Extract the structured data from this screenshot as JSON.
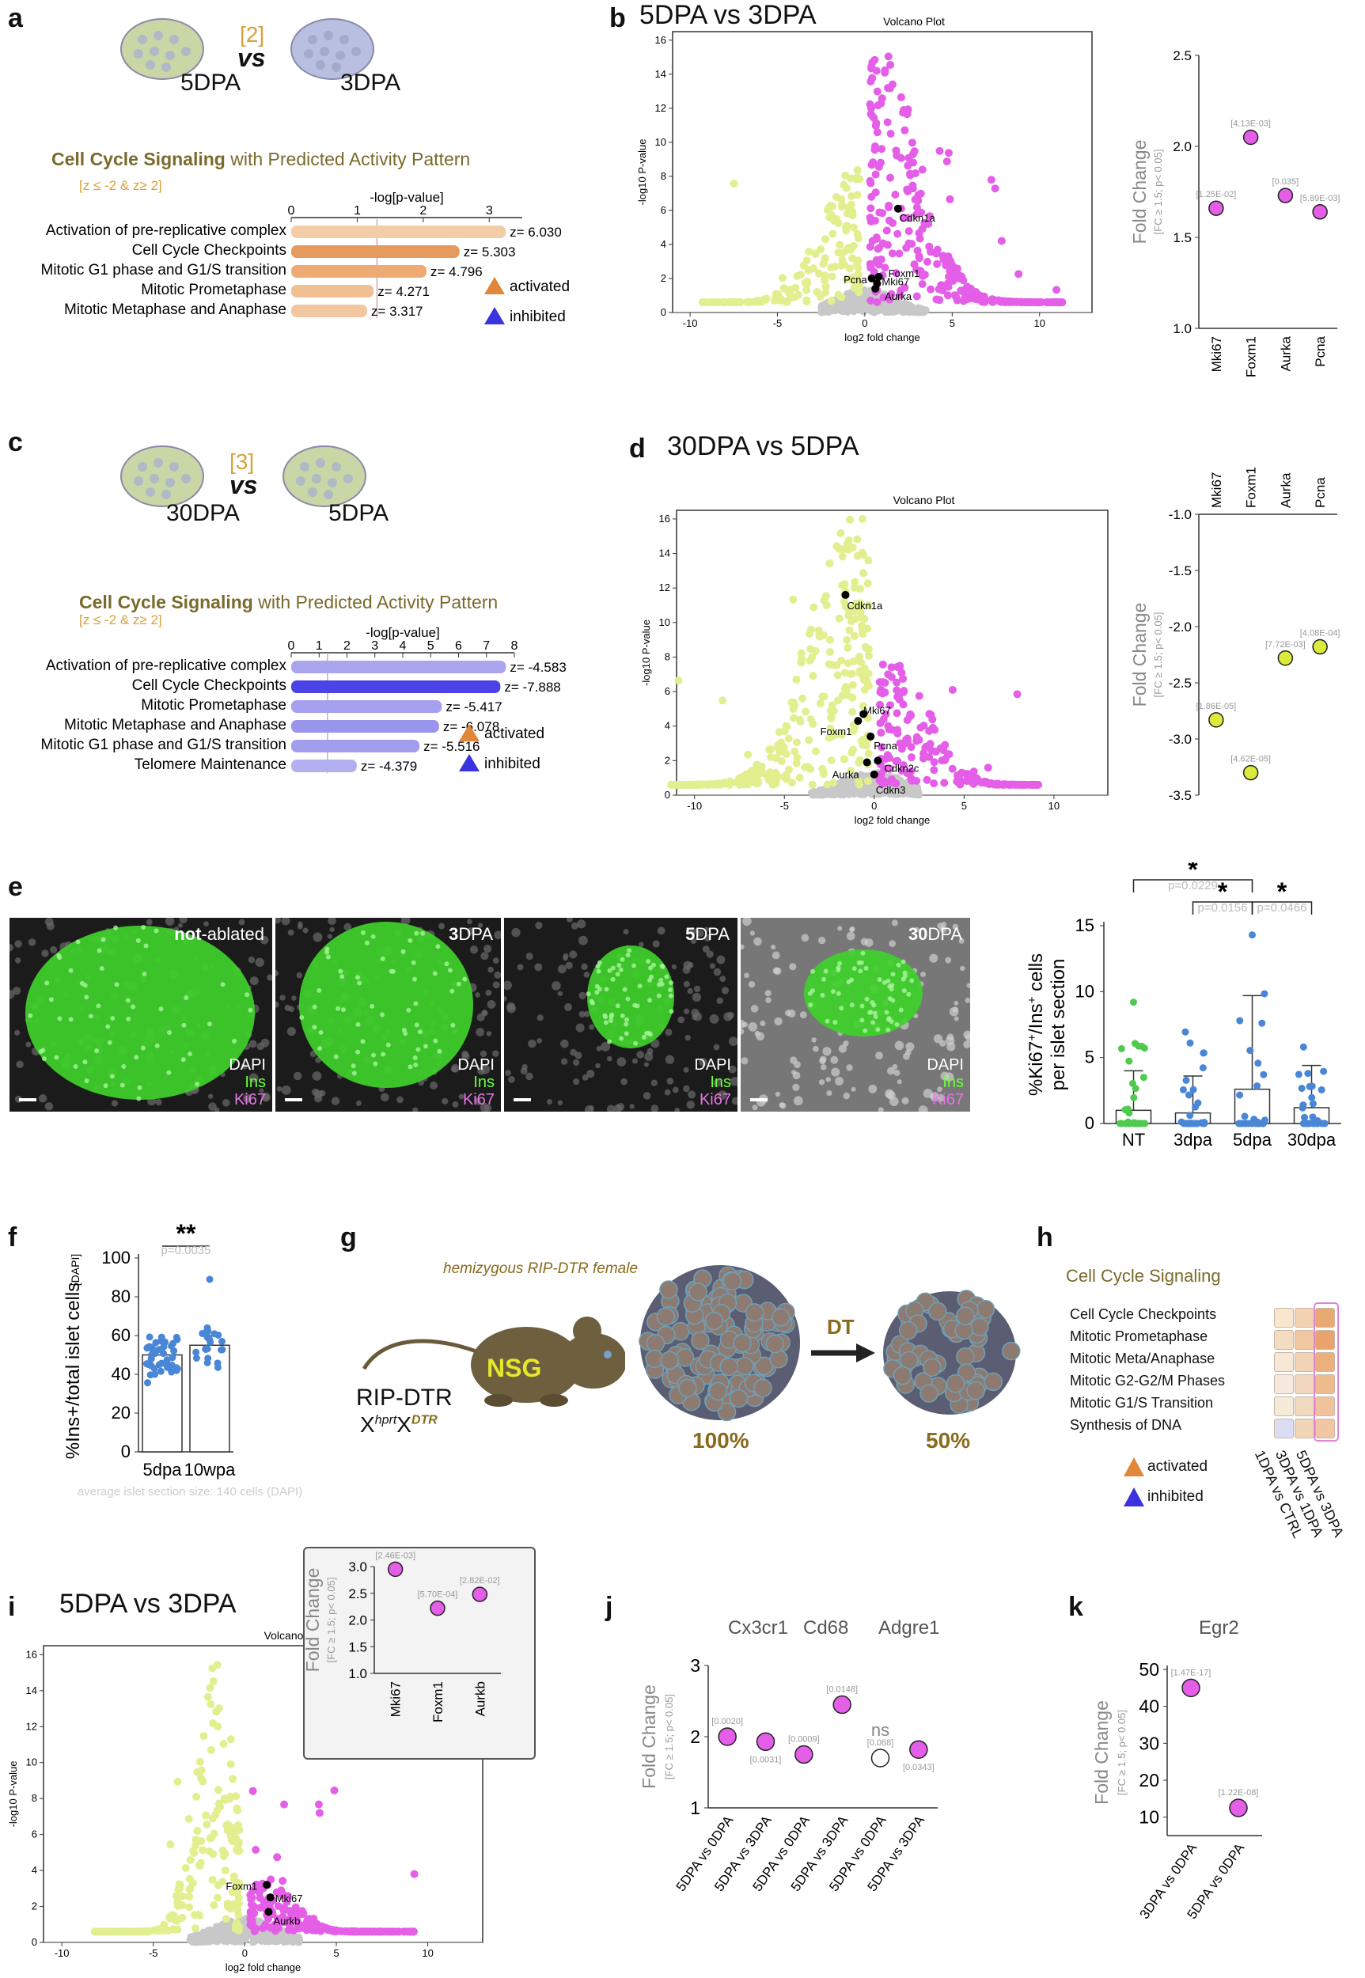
{
  "a": {
    "label": "a",
    "ref": "[2]",
    "vs": "vs",
    "left": "5DPA",
    "right": "3DPA",
    "title_main": "Cell Cycle Signaling",
    "title_rest": " with Predicted Activity Pattern",
    "threshold": "[z ≤ -2 & z≥ 2]",
    "axis_label": "-log[p-value]",
    "ticks": [
      "0",
      "1",
      "2",
      "3"
    ],
    "rows": [
      {
        "label": "Activation of pre-replicative complex",
        "z": "z= 6.030",
        "value": 3.25
      },
      {
        "label": "Cell Cycle Checkpoints",
        "z": "z= 5.303",
        "value": 2.55
      },
      {
        "label": "Mitotic G1 phase and G1/S transition",
        "z": "z= 4.796",
        "value": 2.05
      },
      {
        "label": "Mitotic Prometaphase",
        "z": "z= 4.271",
        "value": 1.25
      },
      {
        "label": "Mitotic Metaphase and Anaphase",
        "z": "z= 3.317",
        "value": 1.15
      }
    ],
    "legend_activated": "activated",
    "legend_inhibited": "inhibited"
  },
  "b": {
    "label": "b",
    "title": "5DPA vs 3DPA",
    "volcano_title": "Volcano Plot",
    "xlabel": "log2 fold change",
    "ylabel": "-log10 P-value",
    "xticks": [
      "-10",
      "-5",
      "0",
      "5",
      "10"
    ],
    "yticks": [
      "0",
      "2",
      "4",
      "6",
      "8",
      "10",
      "12",
      "14",
      "16"
    ],
    "genes": [
      "Cdkn1a",
      "Pcna",
      "Foxm1",
      "Mki67",
      "Aurka"
    ],
    "fc_ylabel": "Fold Change",
    "fc_sub": "[FC ≥ 1.5; p< 0.05]",
    "fc_yticks": [
      "1.0",
      "1.5",
      "2.0",
      "2.5"
    ],
    "fc_cats": [
      "Mki67",
      "Foxm1",
      "Aurka",
      "Pcna"
    ],
    "fc_values": [
      1.66,
      2.05,
      1.73,
      1.64
    ],
    "fc_pvals": [
      "[1.25E-02]",
      "[4.13E-03]",
      "[0.035]",
      "[5.89E-03]"
    ]
  },
  "c": {
    "label": "c",
    "ref": "[3]",
    "vs": "vs",
    "left": "30DPA",
    "right": "5DPA",
    "title_main": "Cell Cycle Signaling",
    "title_rest": " with Predicted Activity Pattern",
    "threshold": "[z ≤ -2 & z≥ 2]",
    "axis_label": "-log[p-value]",
    "ticks": [
      "0",
      "1",
      "2",
      "3",
      "4",
      "5",
      "6",
      "7",
      "8"
    ],
    "rows": [
      {
        "label": "Activation of pre-replicative complex",
        "z": "z= -4.583",
        "value": 7.7
      },
      {
        "label": "Cell Cycle Checkpoints",
        "z": "z= -7.888",
        "value": 7.5
      },
      {
        "label": "Mitotic Prometaphase",
        "z": "z= -5.417",
        "value": 5.4
      },
      {
        "label": "Mitotic Metaphase and Anaphase",
        "z": "z= -6.078",
        "value": 5.3
      },
      {
        "label": "Mitotic G1 phase and G1/S transition",
        "z": "z= -5.516",
        "value": 4.6
      },
      {
        "label": "Telomere Maintenance",
        "z": "z= -4.379",
        "value": 2.35
      }
    ],
    "legend_activated": "activated",
    "legend_inhibited": "inhibited"
  },
  "d": {
    "label": "d",
    "title": "30DPA vs 5DPA",
    "volcano_title": "Volcano Plot",
    "xlabel": "log2 fold change",
    "ylabel": "-log10 P-value",
    "xticks": [
      "-10",
      "-5",
      "0",
      "5",
      "10"
    ],
    "yticks": [
      "0",
      "2",
      "4",
      "6",
      "8",
      "10",
      "12",
      "14",
      "16"
    ],
    "genes": [
      "Cdkn1a",
      "Foxm1",
      "Mki67",
      "Pcna",
      "Aurka",
      "Cdkn2c",
      "Cdkn3"
    ],
    "fc_ylabel": "Fold Change",
    "fc_sub": "[FC ≥ 1.5; p< 0.05]",
    "fc_yticks": [
      "-1.0",
      "-1.5",
      "-2.0",
      "-2.5",
      "-3.0",
      "-3.5"
    ],
    "fc_cats": [
      "Mki67",
      "Foxm1",
      "Aurka",
      "Pcna"
    ],
    "fc_values": [
      -2.83,
      -3.3,
      -2.28,
      -2.18
    ],
    "fc_pvals": [
      "[1.86E-05]",
      "[4.62E-05]",
      "[7.72E-03]",
      "[4.08E-04]"
    ]
  },
  "e": {
    "label": "e",
    "panels": [
      {
        "cond_a": "not",
        "cond_b": "-ablated"
      },
      {
        "cond_a": "3",
        "cond_b": "DPA"
      },
      {
        "cond_a": "5",
        "cond_b": "DPA"
      },
      {
        "cond_a": "30",
        "cond_b": "DPA"
      }
    ],
    "dapi": "DAPI",
    "ins": "Ins",
    "ki67": "Ki67",
    "chart_ylabel_a": "%Ki67",
    "chart_ylabel_b": "/Ins",
    "chart_ylabel_c": " cells",
    "chart_ylabel_d": "per islet section",
    "sup": "+",
    "categories": [
      "NT",
      "3dpa",
      "5dpa",
      "30dpa"
    ],
    "means": [
      1.0,
      0.8,
      2.6,
      1.2
    ],
    "sd": [
      3.0,
      2.8,
      7.1,
      3.2
    ],
    "yticks": [
      "0",
      "5",
      "10",
      "15"
    ],
    "sig": [
      "*",
      "*",
      "*"
    ],
    "pvals": [
      "p=0.0229",
      "p=0.0156",
      "p=0.0466"
    ]
  },
  "f": {
    "label": "f",
    "sig": "**",
    "pval": "p=0.0035",
    "ylabel": "%Ins+/total islet cells",
    "ylabel_sub": "[DAPI]",
    "categories": [
      "5dpa",
      "10wpa"
    ],
    "means": [
      50,
      55
    ],
    "yticks": [
      "0",
      "20",
      "40",
      "60",
      "80",
      "100"
    ],
    "footnote": "average islet section size: 140 cells (DAPI)"
  },
  "g": {
    "label": "g",
    "caption": "hemizygous RIP-DTR female",
    "mouse": "NSG",
    "ripdtr": "RIP-DTR",
    "x1": "X",
    "sup1": "hprt",
    "x2": "X",
    "sup2": "DTR",
    "dt": "DT",
    "pct_before": "100%",
    "pct_after": "50%"
  },
  "h": {
    "label": "h",
    "title": "Cell Cycle Signaling",
    "rows": [
      "Cell Cycle Checkpoints",
      "Mitotic Prometaphase",
      "Mitotic Meta/Anaphase",
      "Mitotic G2-G2/M Phases",
      "Mitotic G1/S Transition",
      "Synthesis of DNA"
    ],
    "cols": [
      "1DPA vs CTRL",
      "3DPA vs 1DPA",
      "5DPA vs 3DPA"
    ],
    "legend_activated": "activated",
    "legend_inhibited": "inhibited"
  },
  "i": {
    "label": "i",
    "title": "5DPA vs 3DPA",
    "volcano_title": "Volcano Plot",
    "xlabel": "log2 fold change",
    "ylabel": "-log10 P-value",
    "xticks": [
      "-10",
      "-5",
      "0",
      "5",
      "10"
    ],
    "yticks": [
      "0",
      "2",
      "4",
      "6",
      "8",
      "10",
      "12",
      "14",
      "16"
    ],
    "genes": [
      "Foxm1",
      "Mki67",
      "Aurkb"
    ],
    "fc_ylabel": "Fold Change",
    "fc_sub": "[FC ≥ 1.5; p< 0.05]",
    "fc_yticks": [
      "1.0",
      "1.5",
      "2.0",
      "2.5",
      "3.0"
    ],
    "fc_cats": [
      "Mki67",
      "Foxm1",
      "Aurkb"
    ],
    "fc_values": [
      2.95,
      2.22,
      2.48
    ],
    "fc_pvals": [
      "[2.46E-03]",
      "[5.70E-04]",
      "[2.82E-02]"
    ]
  },
  "j": {
    "label": "j",
    "genes": [
      "Cx3cr1",
      "Cd68",
      "Adgre1"
    ],
    "ylabel": "Fold Change",
    "sub": "[FC ≥ 1.5; p< 0.05]",
    "yticks": [
      "1",
      "2",
      "3"
    ],
    "cats": [
      "5DPA vs 0DPA",
      "5DPA vs 3DPA",
      "5DPA vs 0DPA",
      "5DPA vs 3DPA",
      "5DPA vs 0DPA",
      "5DPA vs 3DPA"
    ],
    "values": [
      2.0,
      1.93,
      1.75,
      2.45,
      1.7,
      1.82
    ],
    "pvals": [
      "[0.0020]",
      "[0.0031]",
      "[0.0009]",
      "[0.0148]",
      "[0.068]",
      "[0.0343]"
    ],
    "ns": "ns"
  },
  "k": {
    "label": "k",
    "gene": "Egr2",
    "ylabel": "Fold Change",
    "sub": "[FC ≥ 1.5; p< 0.05]",
    "yticks": [
      "10",
      "20",
      "30",
      "40",
      "50"
    ],
    "cats": [
      "3DPA vs 0DPA",
      "5DPA vs 0DPA"
    ],
    "values": [
      45,
      12.5
    ],
    "pvals": [
      "[1.47E-17]",
      "[1.22E-08]"
    ]
  },
  "chart_data": [
    {
      "type": "bar",
      "panel": "a",
      "orientation": "horizontal",
      "categories": [
        "Activation of pre-replicative complex",
        "Cell Cycle Checkpoints",
        "Mitotic G1 phase and G1/S transition",
        "Mitotic Prometaphase",
        "Mitotic Metaphase and Anaphase"
      ],
      "values": [
        3.25,
        2.55,
        2.05,
        1.25,
        1.15
      ],
      "xlabel": "-log[p-value]",
      "xlim": [
        0,
        3.5
      ]
    },
    {
      "type": "scatter",
      "panel": "b",
      "categories": [
        "Mki67",
        "Foxm1",
        "Aurka",
        "Pcna"
      ],
      "values": [
        1.66,
        2.05,
        1.73,
        1.64
      ],
      "ylim": [
        1.0,
        2.5
      ]
    },
    {
      "type": "bar",
      "panel": "c",
      "orientation": "horizontal",
      "categories": [
        "Activation of pre-replicative complex",
        "Cell Cycle Checkpoints",
        "Mitotic Prometaphase",
        "Mitotic Metaphase and Anaphase",
        "Mitotic G1 phase and G1/S transition",
        "Telomere Maintenance"
      ],
      "values": [
        7.7,
        7.5,
        5.4,
        5.3,
        4.6,
        2.35
      ],
      "xlabel": "-log[p-value]",
      "xlim": [
        0,
        8
      ]
    },
    {
      "type": "scatter",
      "panel": "d",
      "categories": [
        "Mki67",
        "Foxm1",
        "Aurka",
        "Pcna"
      ],
      "values": [
        -2.83,
        -3.3,
        -2.28,
        -2.18
      ],
      "ylim": [
        -3.5,
        -1.0
      ]
    },
    {
      "type": "bar",
      "panel": "e",
      "categories": [
        "NT",
        "3dpa",
        "5dpa",
        "30dpa"
      ],
      "values": [
        1.0,
        0.8,
        2.6,
        1.2
      ],
      "ylim": [
        0,
        15
      ]
    },
    {
      "type": "bar",
      "panel": "f",
      "categories": [
        "5dpa",
        "10wpa"
      ],
      "values": [
        50,
        55
      ],
      "ylim": [
        0,
        100
      ]
    },
    {
      "type": "scatter",
      "panel": "i",
      "categories": [
        "Mki67",
        "Foxm1",
        "Aurkb"
      ],
      "values": [
        2.95,
        2.22,
        2.48
      ],
      "ylim": [
        1.0,
        3.0
      ]
    },
    {
      "type": "scatter",
      "panel": "j",
      "categories": [
        "5DPA vs 0DPA",
        "5DPA vs 3DPA",
        "5DPA vs 0DPA",
        "5DPA vs 3DPA",
        "5DPA vs 0DPA",
        "5DPA vs 3DPA"
      ],
      "values": [
        2.0,
        1.93,
        1.75,
        2.45,
        1.7,
        1.82
      ],
      "ylim": [
        1,
        3
      ]
    },
    {
      "type": "scatter",
      "panel": "k",
      "categories": [
        "3DPA vs 0DPA",
        "5DPA vs 0DPA"
      ],
      "values": [
        45,
        12.5
      ],
      "ylim": [
        5,
        50
      ]
    }
  ],
  "colors": {
    "magenta": "#e45ee8",
    "yellow": "#e2ef8f",
    "orange": "#e0873a",
    "blue": "#3b33e0",
    "olive": "#7a6a2c",
    "gold": "#d9a13a"
  }
}
